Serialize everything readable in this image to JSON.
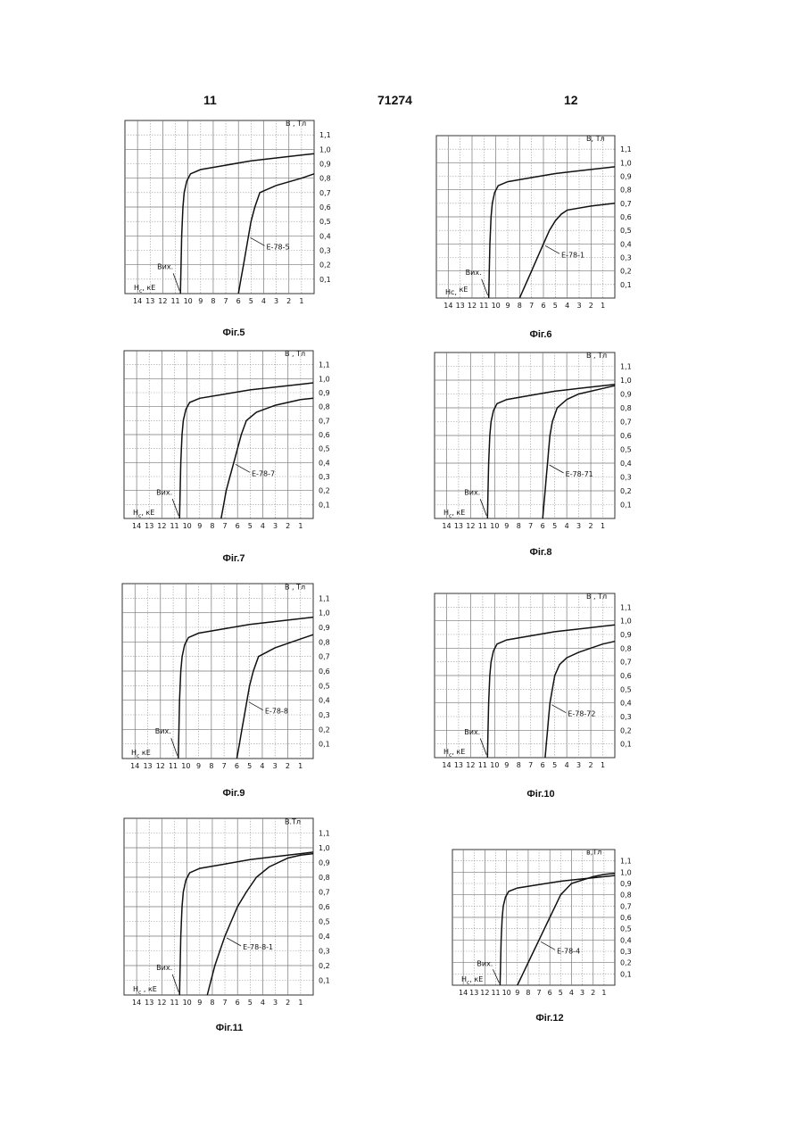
{
  "header": {
    "left": "11",
    "center": "71274",
    "right": "12"
  },
  "chart_data": [
    {
      "id": "f5",
      "type": "line",
      "caption": "Фіг.5",
      "ylabel": "В , Тл",
      "xlabel_h": "Н",
      "xlabel_sub": "с",
      "xlabel_unit": ", кЕ",
      "orig_label": "Вих.",
      "xlim": [
        15,
        0
      ],
      "ylim": [
        0,
        1.2
      ],
      "xticks": [
        "14",
        "13",
        "12",
        "11",
        "10",
        "9",
        "8",
        "7",
        "6",
        "5",
        "4",
        "3",
        "2",
        "1"
      ],
      "yticks": [
        "1,1",
        "1,0",
        "0,9",
        "0,8",
        "0,7",
        "0,6",
        "0,5",
        "0,4",
        "0,3",
        "0,2",
        "0,1"
      ],
      "series": [
        {
          "name": "",
          "x": [
            10.6,
            10.55,
            10.5,
            10.4,
            10.3,
            10.1,
            9.8,
            9,
            7,
            5,
            3,
            1,
            0
          ],
          "y": [
            0,
            0.2,
            0.4,
            0.6,
            0.7,
            0.78,
            0.83,
            0.86,
            0.89,
            0.92,
            0.94,
            0.96,
            0.97
          ]
        },
        {
          "name": "Е-78-5",
          "x": [
            6,
            5.8,
            5.6,
            5.4,
            5.2,
            5,
            4.7,
            4.3,
            3,
            1,
            0
          ],
          "y": [
            0,
            0.1,
            0.2,
            0.3,
            0.4,
            0.5,
            0.6,
            0.7,
            0.75,
            0.8,
            0.83
          ]
        }
      ]
    },
    {
      "id": "f6",
      "type": "line",
      "caption": "Фіг.6",
      "ylabel": "В, Тл",
      "xlabel_h": "Нс,",
      "xlabel_sub": "",
      "xlabel_unit": " кЕ",
      "orig_label": "Вих.",
      "xlim": [
        15,
        0
      ],
      "ylim": [
        0,
        1.2
      ],
      "xticks": [
        "14",
        "13",
        "12",
        "11",
        "10",
        "9",
        "8",
        "7",
        "6",
        "5",
        "4",
        "3",
        "2",
        "1"
      ],
      "yticks": [
        "1,1",
        "1,0",
        "0,9",
        "0,8",
        "0,7",
        "0,6",
        "0,5",
        "0,4",
        "0,3",
        "0,2",
        "0,1"
      ],
      "series": [
        {
          "name": "",
          "x": [
            10.6,
            10.55,
            10.5,
            10.4,
            10.3,
            10.1,
            9.8,
            9,
            7,
            5,
            3,
            1,
            0
          ],
          "y": [
            0,
            0.2,
            0.4,
            0.6,
            0.7,
            0.78,
            0.83,
            0.86,
            0.89,
            0.92,
            0.94,
            0.96,
            0.97
          ]
        },
        {
          "name": "Е-78-1",
          "x": [
            8,
            7.5,
            7,
            6.5,
            6,
            5.5,
            5,
            4.5,
            4,
            2,
            0
          ],
          "y": [
            0,
            0.1,
            0.2,
            0.3,
            0.4,
            0.5,
            0.57,
            0.62,
            0.65,
            0.68,
            0.7
          ]
        }
      ]
    },
    {
      "id": "f7",
      "type": "line",
      "caption": "Фіг.7",
      "ylabel": "В , Тл",
      "xlabel_h": "Н",
      "xlabel_sub": "с",
      "xlabel_unit": ", кЕ",
      "orig_label": "Вих.",
      "xlim": [
        15,
        0
      ],
      "ylim": [
        0,
        1.2
      ],
      "xticks": [
        "14",
        "13",
        "12",
        "11",
        "10",
        "9",
        "8",
        "7",
        "6",
        "5",
        "4",
        "3",
        "2",
        "1"
      ],
      "yticks": [
        "1,1",
        "1,0",
        "0,9",
        "0,8",
        "0,7",
        "0,6",
        "0,5",
        "0,4",
        "0,3",
        "0,2",
        "0,1"
      ],
      "series": [
        {
          "name": "",
          "x": [
            10.6,
            10.55,
            10.5,
            10.4,
            10.3,
            10.1,
            9.8,
            9,
            7,
            5,
            3,
            1,
            0
          ],
          "y": [
            0,
            0.2,
            0.4,
            0.6,
            0.7,
            0.78,
            0.83,
            0.86,
            0.89,
            0.92,
            0.94,
            0.96,
            0.97
          ]
        },
        {
          "name": "Е-78-7",
          "x": [
            7.3,
            7.1,
            6.9,
            6.6,
            6.3,
            6,
            5.7,
            5.3,
            4.5,
            3,
            1,
            0
          ],
          "y": [
            0,
            0.1,
            0.2,
            0.3,
            0.4,
            0.5,
            0.6,
            0.7,
            0.76,
            0.81,
            0.85,
            0.86
          ]
        }
      ]
    },
    {
      "id": "f8",
      "type": "line",
      "caption": "Фіг.8",
      "ylabel": "В , Тл",
      "xlabel_h": "Н",
      "xlabel_sub": "с",
      "xlabel_unit": ", кЕ",
      "orig_label": "Вих.",
      "xlim": [
        15,
        0
      ],
      "ylim": [
        0,
        1.2
      ],
      "xticks": [
        "14",
        "13",
        "12",
        "11",
        "10",
        "9",
        "8",
        "7",
        "6",
        "5",
        "4",
        "3",
        "2",
        "1"
      ],
      "yticks": [
        "1,1",
        "1,0",
        "0,9",
        "0,8",
        "0,7",
        "0,6",
        "0,5",
        "0,4",
        "0,3",
        "0,2",
        "0,1"
      ],
      "series": [
        {
          "name": "",
          "x": [
            10.6,
            10.55,
            10.5,
            10.4,
            10.3,
            10.1,
            9.8,
            9,
            7,
            5,
            3,
            1,
            0
          ],
          "y": [
            0,
            0.2,
            0.4,
            0.6,
            0.7,
            0.78,
            0.83,
            0.86,
            0.89,
            0.92,
            0.94,
            0.96,
            0.97
          ]
        },
        {
          "name": "Е-78-71",
          "x": [
            6,
            5.9,
            5.8,
            5.7,
            5.6,
            5.5,
            5.4,
            5.2,
            4.8,
            4,
            3,
            1,
            0
          ],
          "y": [
            0,
            0.1,
            0.2,
            0.3,
            0.4,
            0.5,
            0.6,
            0.7,
            0.8,
            0.86,
            0.9,
            0.94,
            0.96
          ]
        }
      ]
    },
    {
      "id": "f9",
      "type": "line",
      "caption": "Фіг.9",
      "ylabel": "В , Тл",
      "xlabel_h": "Н",
      "xlabel_sub": "с",
      "xlabel_unit": "  кЕ",
      "orig_label": "Вих.",
      "xlim": [
        15,
        0
      ],
      "ylim": [
        0,
        1.2
      ],
      "xticks": [
        "14",
        "13",
        "12",
        "11",
        "10",
        "9",
        "8",
        "7",
        "6",
        "5",
        "4",
        "3",
        "2",
        "1"
      ],
      "yticks": [
        "1,1",
        "1,0",
        "0,9",
        "0,8",
        "0,7",
        "0,6",
        "0,5",
        "0,4",
        "0,3",
        "0,2",
        "0,1"
      ],
      "series": [
        {
          "name": "",
          "x": [
            10.6,
            10.55,
            10.5,
            10.4,
            10.3,
            10.1,
            9.8,
            9,
            7,
            5,
            3,
            1,
            0
          ],
          "y": [
            0,
            0.2,
            0.4,
            0.6,
            0.7,
            0.78,
            0.83,
            0.86,
            0.89,
            0.92,
            0.94,
            0.96,
            0.97
          ]
        },
        {
          "name": "Е-78-8",
          "x": [
            6,
            5.8,
            5.6,
            5.4,
            5.2,
            5,
            4.7,
            4.3,
            3,
            1,
            0
          ],
          "y": [
            0,
            0.1,
            0.2,
            0.3,
            0.4,
            0.5,
            0.6,
            0.7,
            0.76,
            0.82,
            0.85
          ]
        }
      ]
    },
    {
      "id": "f10",
      "type": "line",
      "caption": "Фіг.10",
      "ylabel": "В , Тл",
      "xlabel_h": "Н",
      "xlabel_sub": "с",
      "xlabel_unit": ", кЕ",
      "orig_label": "Вих.",
      "xlim": [
        15,
        0
      ],
      "ylim": [
        0,
        1.2
      ],
      "xticks": [
        "14",
        "13",
        "12",
        "11",
        "10",
        "9",
        "8",
        "7",
        "6",
        "5",
        "4",
        "3",
        "2",
        "1"
      ],
      "yticks": [
        "1,1",
        "1,0",
        "0,9",
        "0,8",
        "0,7",
        "0,6",
        "0,5",
        "0,4",
        "0,3",
        "0,2",
        "0,1"
      ],
      "series": [
        {
          "name": "",
          "x": [
            10.6,
            10.55,
            10.5,
            10.4,
            10.3,
            10.1,
            9.8,
            9,
            7,
            5,
            3,
            1,
            0
          ],
          "y": [
            0,
            0.2,
            0.4,
            0.6,
            0.7,
            0.78,
            0.83,
            0.86,
            0.89,
            0.92,
            0.94,
            0.96,
            0.97
          ]
        },
        {
          "name": "Е-78-72",
          "x": [
            5.8,
            5.7,
            5.6,
            5.5,
            5.4,
            5.2,
            5,
            4.6,
            4,
            3,
            1,
            0
          ],
          "y": [
            0,
            0.1,
            0.2,
            0.3,
            0.4,
            0.5,
            0.6,
            0.68,
            0.73,
            0.77,
            0.83,
            0.85
          ]
        }
      ]
    },
    {
      "id": "f11",
      "type": "line",
      "caption": "Фіг.11",
      "ylabel": "В.Тл",
      "xlabel_h": "Н",
      "xlabel_sub": "с",
      "xlabel_unit": "  ,  кЕ",
      "orig_label": "Вих.",
      "xlim": [
        15,
        0
      ],
      "ylim": [
        0,
        1.2
      ],
      "xticks": [
        "14",
        "13",
        "12",
        "11",
        "10",
        "9",
        "8",
        "7",
        "6",
        "5",
        "4",
        "3",
        "2",
        "1"
      ],
      "yticks": [
        "1,1",
        "1,0",
        "0,9",
        "0,8",
        "0,7",
        "0,6",
        "0,5",
        "0,4",
        "0,3",
        "0,2",
        "0,1"
      ],
      "series": [
        {
          "name": "",
          "x": [
            10.6,
            10.55,
            10.5,
            10.4,
            10.3,
            10.1,
            9.8,
            9,
            7,
            5,
            3,
            1,
            0
          ],
          "y": [
            0,
            0.2,
            0.4,
            0.6,
            0.7,
            0.78,
            0.83,
            0.86,
            0.89,
            0.92,
            0.94,
            0.96,
            0.97
          ]
        },
        {
          "name": "Е-78-8-1",
          "x": [
            8.4,
            8.1,
            7.8,
            7.4,
            7,
            6.5,
            6,
            5.3,
            4.5,
            3.5,
            2,
            1,
            0
          ],
          "y": [
            0,
            0.1,
            0.2,
            0.3,
            0.4,
            0.5,
            0.6,
            0.7,
            0.8,
            0.87,
            0.93,
            0.95,
            0.96
          ]
        }
      ]
    },
    {
      "id": "f12",
      "type": "line",
      "caption": "Фіг.12",
      "ylabel": "в,Тл",
      "xlabel_h": "Н",
      "xlabel_sub": "с",
      "xlabel_unit": ", кЕ",
      "orig_label": "Вих.",
      "xlim": [
        15,
        0
      ],
      "ylim": [
        0,
        1.2
      ],
      "xticks": [
        "14",
        "13",
        "12",
        "11",
        "10",
        "9",
        "8",
        "7",
        "6",
        "5",
        "4",
        "3",
        "2",
        "1"
      ],
      "yticks": [
        "1,1",
        "1,0",
        "0,9",
        "0,8",
        "0,7",
        "0,6",
        "0,5",
        "0,4",
        "0,3",
        "0,2",
        "0,1"
      ],
      "series": [
        {
          "name": "",
          "x": [
            10.6,
            10.55,
            10.5,
            10.4,
            10.3,
            10.1,
            9.8,
            9,
            7,
            5,
            3,
            1,
            0
          ],
          "y": [
            0,
            0.2,
            0.4,
            0.6,
            0.7,
            0.78,
            0.83,
            0.86,
            0.89,
            0.92,
            0.94,
            0.96,
            0.97
          ]
        },
        {
          "name": "Е-78-4",
          "x": [
            9,
            8.5,
            8,
            7.5,
            7,
            6.5,
            6,
            5.5,
            5,
            4,
            2,
            1,
            0
          ],
          "y": [
            0,
            0.1,
            0.2,
            0.3,
            0.4,
            0.5,
            0.6,
            0.7,
            0.8,
            0.9,
            0.96,
            0.98,
            0.99
          ]
        }
      ]
    }
  ]
}
